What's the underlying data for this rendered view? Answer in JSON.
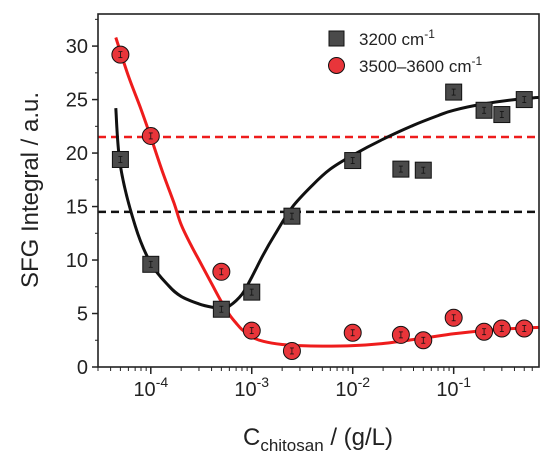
{
  "chart_data": {
    "type": "scatter",
    "x_scale": "log",
    "xlim": [
      3e-05,
      0.7
    ],
    "ylim": [
      0,
      33
    ],
    "y_ticks": [
      0,
      5,
      10,
      15,
      20,
      25,
      30
    ],
    "x_tick_labels": [
      {
        "base": "10",
        "exp": "-4",
        "value": 0.0001
      },
      {
        "base": "10",
        "exp": "-3",
        "value": 0.001
      },
      {
        "base": "10",
        "exp": "-2",
        "value": 0.01
      },
      {
        "base": "10",
        "exp": "-1",
        "value": 0.1
      }
    ],
    "xlabel": {
      "main": "C",
      "sub": "chitosan",
      "rest": " / (g/L)"
    },
    "ylabel": "SFG Integral / a.u.",
    "legend": {
      "placement": "top-right"
    },
    "series": [
      {
        "name": "3200 cm",
        "name_sup": "-1",
        "marker": "square",
        "color": "#4a4a4a",
        "x": [
          5e-05,
          0.0001,
          0.0005,
          0.001,
          0.0025,
          0.01,
          0.03,
          0.05,
          0.1,
          0.2,
          0.3,
          0.5
        ],
        "y": [
          19.4,
          9.6,
          5.4,
          7.0,
          14.1,
          19.3,
          18.5,
          18.4,
          25.7,
          24.0,
          23.6,
          25.0
        ],
        "fit": {
          "color": "#111111",
          "x": [
            4.5e-05,
            5e-05,
            7e-05,
            0.0001,
            0.00015,
            0.0002,
            0.0003,
            0.0004,
            0.0005,
            0.0006,
            0.0008,
            0.001,
            0.0013,
            0.0017,
            0.0025,
            0.004,
            0.006,
            0.01,
            0.02,
            0.04,
            0.07,
            0.1,
            0.2,
            0.4,
            0.7
          ],
          "y": [
            24.2,
            18.8,
            13.2,
            9.7,
            7.6,
            6.6,
            5.9,
            5.6,
            5.5,
            5.7,
            6.8,
            8.4,
            10.5,
            12.4,
            14.9,
            17.0,
            18.5,
            19.8,
            21.3,
            22.6,
            23.5,
            24.0,
            24.6,
            25.0,
            25.2
          ]
        },
        "reference_line": {
          "y": 14.5,
          "color": "#111111",
          "style": "dashed"
        }
      },
      {
        "name": "3500–3600 cm",
        "name_sup": "-1",
        "marker": "circle",
        "color": "#e8353a",
        "x": [
          5e-05,
          0.0001,
          0.0005,
          0.001,
          0.0025,
          0.01,
          0.03,
          0.05,
          0.1,
          0.2,
          0.3,
          0.5
        ],
        "y": [
          29.2,
          21.6,
          8.9,
          3.4,
          1.5,
          3.2,
          3.0,
          2.5,
          4.6,
          3.3,
          3.6,
          3.6
        ],
        "fit": {
          "color": "#ee1c1c",
          "x": [
            4.5e-05,
            6e-05,
            8e-05,
            0.0001,
            0.00013,
            0.00017,
            0.0002,
            0.00025,
            0.0003,
            0.0004,
            0.0005,
            0.0006,
            0.0007,
            0.0008,
            0.001,
            0.0013,
            0.002,
            0.003,
            0.005,
            0.01,
            0.02,
            0.05,
            0.1,
            0.2,
            0.4,
            0.7
          ],
          "y": [
            30.8,
            27.2,
            24.1,
            21.5,
            18.3,
            15.3,
            13.3,
            11.4,
            10.0,
            7.8,
            6.1,
            4.9,
            4.1,
            3.5,
            2.8,
            2.4,
            2.1,
            2.0,
            1.95,
            2.0,
            2.2,
            2.7,
            3.1,
            3.4,
            3.6,
            3.7
          ]
        },
        "reference_line": {
          "y": 21.5,
          "color": "#ee1c1c",
          "style": "dashed"
        }
      }
    ]
  }
}
